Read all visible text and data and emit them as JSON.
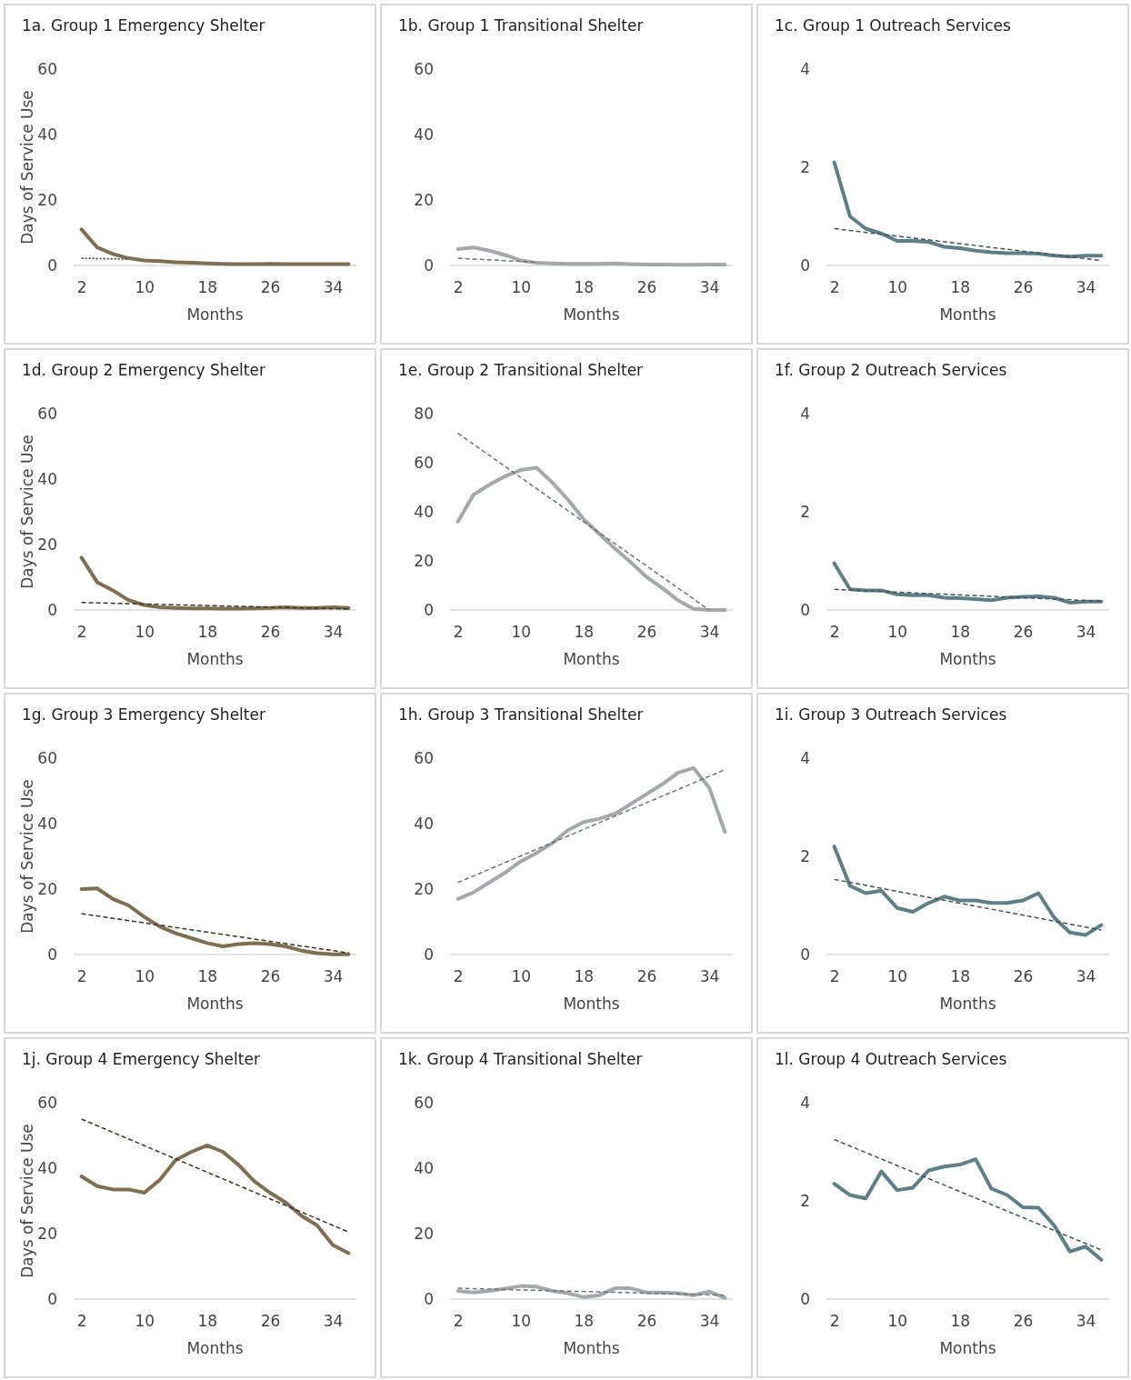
{
  "chart_data": [
    {
      "type": "line",
      "title": "1a. Group 1 Emergency Shelter",
      "xlabel": "Months",
      "ylabel": "Days of Service Use",
      "x": [
        2,
        4,
        6,
        8,
        10,
        12,
        14,
        16,
        18,
        20,
        22,
        24,
        26,
        28,
        30,
        32,
        34,
        36
      ],
      "xlim": [
        1,
        37
      ],
      "xticks": [
        2,
        10,
        18,
        26,
        34
      ],
      "ylim": [
        0,
        60
      ],
      "yticks": [
        0,
        20,
        40,
        60
      ],
      "series": [
        {
          "color": "#7f6f52",
          "values": [
            11,
            5.5,
            3.5,
            2.2,
            1.5,
            1.3,
            1,
            0.8,
            0.6,
            0.5,
            0.4,
            0.4,
            0.5,
            0.4,
            0.4,
            0.4,
            0.4,
            0.4
          ]
        },
        {
          "type": "line",
          "line_style": "dotted",
          "color": "#3a3328",
          "x": [
            2,
            8
          ],
          "values": [
            2.2,
            1.9
          ]
        }
      ]
    },
    {
      "type": "line",
      "title": "1b. Group 1 Transitional Shelter",
      "xlabel": "Months",
      "x": [
        2,
        4,
        6,
        8,
        10,
        12,
        14,
        16,
        18,
        20,
        22,
        24,
        26,
        28,
        30,
        32,
        34,
        36
      ],
      "xlim": [
        1,
        37
      ],
      "xticks": [
        2,
        10,
        18,
        26,
        34
      ],
      "ylim": [
        0,
        60
      ],
      "yticks": [
        0,
        20,
        40,
        60
      ],
      "series": [
        {
          "color": "#a5a8aa",
          "values": [
            5,
            5.5,
            4.5,
            3.2,
            1.5,
            0.8,
            0.6,
            0.5,
            0.5,
            0.5,
            0.6,
            0.4,
            0.3,
            0.3,
            0.2,
            0.2,
            0.3,
            0.3
          ]
        },
        {
          "type": "line",
          "line_style": "dashed",
          "color": "#6b747a",
          "x": [
            2,
            12
          ],
          "values": [
            2.2,
            1
          ]
        }
      ]
    },
    {
      "type": "line",
      "title": "1c. Group 1 Outreach Services",
      "xlabel": "Months",
      "x": [
        2,
        4,
        6,
        8,
        10,
        12,
        14,
        16,
        18,
        20,
        22,
        24,
        26,
        28,
        30,
        32,
        34,
        36
      ],
      "xlim": [
        1,
        37
      ],
      "xticks": [
        2,
        10,
        18,
        26,
        34
      ],
      "ylim": [
        0,
        4
      ],
      "yticks": [
        0,
        2,
        4
      ],
      "series": [
        {
          "color": "#5f7f88",
          "values": [
            2.1,
            1,
            0.75,
            0.65,
            0.5,
            0.5,
            0.48,
            0.38,
            0.35,
            0.3,
            0.27,
            0.25,
            0.25,
            0.24,
            0.2,
            0.18,
            0.2,
            0.2
          ]
        },
        {
          "type": "line",
          "line_style": "dashed",
          "color": "#44545a",
          "x": [
            2,
            36
          ],
          "values": [
            0.75,
            0.1
          ]
        }
      ]
    },
    {
      "type": "line",
      "title": "1d. Group 2 Emergency Shelter",
      "xlabel": "Months",
      "ylabel": "Days of Service Use",
      "x": [
        2,
        4,
        6,
        8,
        10,
        12,
        14,
        16,
        18,
        20,
        22,
        24,
        26,
        28,
        30,
        32,
        34,
        36
      ],
      "xlim": [
        1,
        37
      ],
      "xticks": [
        2,
        10,
        18,
        26,
        34
      ],
      "ylim": [
        0,
        60
      ],
      "yticks": [
        0,
        20,
        40,
        60
      ],
      "series": [
        {
          "color": "#7f6f52",
          "values": [
            16,
            8.5,
            6,
            3,
            1.5,
            0.8,
            0.6,
            0.5,
            0.5,
            0.4,
            0.4,
            0.5,
            0.6,
            0.8,
            0.6,
            0.6,
            0.8,
            0.6
          ]
        },
        {
          "type": "line",
          "line_style": "dashed",
          "color": "#3a3328",
          "x": [
            2,
            36
          ],
          "values": [
            2.3,
            0.3
          ]
        }
      ]
    },
    {
      "type": "line",
      "title": "1e. Group 2 Transitional Shelter",
      "xlabel": "Months",
      "x": [
        2,
        4,
        6,
        8,
        10,
        12,
        14,
        16,
        18,
        20,
        22,
        24,
        26,
        28,
        30,
        32,
        34,
        36
      ],
      "xlim": [
        1,
        37
      ],
      "xticks": [
        2,
        10,
        18,
        26,
        34
      ],
      "ylim": [
        0,
        80
      ],
      "yticks": [
        0,
        20,
        40,
        60,
        80
      ],
      "series": [
        {
          "color": "#a5a8aa",
          "values": [
            36,
            47,
            51,
            54.5,
            57,
            58,
            52,
            45,
            37,
            31,
            25,
            19.5,
            13.5,
            9,
            4,
            0.5,
            0,
            0
          ]
        },
        {
          "type": "line",
          "line_style": "dashed",
          "color": "#6b747a",
          "x": [
            2,
            34
          ],
          "values": [
            72,
            0
          ]
        }
      ]
    },
    {
      "type": "line",
      "title": "1f. Group 2 Outreach Services",
      "xlabel": "Months",
      "x": [
        2,
        4,
        6,
        8,
        10,
        12,
        14,
        16,
        18,
        20,
        22,
        24,
        26,
        28,
        30,
        32,
        34,
        36
      ],
      "xlim": [
        1,
        37
      ],
      "xticks": [
        2,
        10,
        18,
        26,
        34
      ],
      "ylim": [
        0,
        4
      ],
      "yticks": [
        0,
        2,
        4
      ],
      "series": [
        {
          "color": "#5f7f88",
          "values": [
            0.95,
            0.42,
            0.4,
            0.4,
            0.32,
            0.3,
            0.3,
            0.25,
            0.24,
            0.22,
            0.2,
            0.25,
            0.27,
            0.28,
            0.25,
            0.15,
            0.17,
            0.17
          ]
        },
        {
          "type": "line",
          "line_style": "dashed",
          "color": "#44545a",
          "x": [
            2,
            36
          ],
          "values": [
            0.42,
            0.18
          ]
        }
      ]
    },
    {
      "type": "line",
      "title": "1g. Group 3 Emergency Shelter",
      "xlabel": "Months",
      "ylabel": "Days of Service Use",
      "x": [
        2,
        4,
        6,
        8,
        10,
        12,
        14,
        16,
        18,
        20,
        22,
        24,
        26,
        28,
        30,
        32,
        34,
        36
      ],
      "xlim": [
        1,
        37
      ],
      "xticks": [
        2,
        10,
        18,
        26,
        34
      ],
      "ylim": [
        0,
        60
      ],
      "yticks": [
        0,
        20,
        40,
        60
      ],
      "series": [
        {
          "color": "#7f6f52",
          "values": [
            20,
            20.2,
            17,
            15,
            11.5,
            8.5,
            6.5,
            5,
            3.5,
            2.5,
            3.2,
            3.5,
            3.2,
            2.5,
            1.2,
            0.4,
            0.1,
            0.1
          ]
        },
        {
          "type": "line",
          "line_style": "dashed",
          "color": "#3a3328",
          "x": [
            2,
            36
          ],
          "values": [
            12.5,
            0.5
          ]
        }
      ]
    },
    {
      "type": "line",
      "title": "1h. Group 3 Transitional Shelter",
      "xlabel": "Months",
      "x": [
        2,
        4,
        6,
        8,
        10,
        12,
        14,
        16,
        18,
        20,
        22,
        24,
        26,
        28,
        30,
        32,
        34,
        36
      ],
      "xlim": [
        1,
        37
      ],
      "xticks": [
        2,
        10,
        18,
        26,
        34
      ],
      "ylim": [
        0,
        60
      ],
      "yticks": [
        0,
        20,
        40,
        60
      ],
      "series": [
        {
          "color": "#a5a8aa",
          "values": [
            17,
            19,
            22,
            25,
            28.5,
            31,
            34,
            38,
            40.5,
            41.5,
            43,
            46,
            49,
            52,
            55.5,
            57,
            51,
            37.5
          ]
        },
        {
          "type": "line",
          "line_style": "dashed",
          "color": "#6b747a",
          "x": [
            2,
            36
          ],
          "values": [
            22,
            56.5
          ]
        }
      ]
    },
    {
      "type": "line",
      "title": "1i. Group 3 Outreach Services",
      "xlabel": "Months",
      "x": [
        2,
        4,
        6,
        8,
        10,
        12,
        14,
        16,
        18,
        20,
        22,
        24,
        26,
        28,
        30,
        32,
        34,
        36
      ],
      "xlim": [
        1,
        37
      ],
      "xticks": [
        2,
        10,
        18,
        26,
        34
      ],
      "ylim": [
        0,
        4
      ],
      "yticks": [
        0,
        2,
        4
      ],
      "series": [
        {
          "color": "#5f7f88",
          "values": [
            2.2,
            1.4,
            1.25,
            1.3,
            0.95,
            0.87,
            1.05,
            1.18,
            1.1,
            1.1,
            1.05,
            1.05,
            1.1,
            1.25,
            0.75,
            0.45,
            0.4,
            0.6
          ]
        },
        {
          "type": "line",
          "line_style": "dashed",
          "color": "#44545a",
          "x": [
            2,
            36
          ],
          "values": [
            1.53,
            0.5
          ]
        }
      ]
    },
    {
      "type": "line",
      "title": "1j. Group 4 Emergency Shelter",
      "xlabel": "Months",
      "ylabel": "Days of Service Use",
      "x": [
        2,
        4,
        6,
        8,
        10,
        12,
        14,
        16,
        18,
        20,
        22,
        24,
        26,
        28,
        30,
        32,
        34,
        36
      ],
      "xlim": [
        1,
        37
      ],
      "xticks": [
        2,
        10,
        18,
        26,
        34
      ],
      "ylim": [
        0,
        60
      ],
      "yticks": [
        0,
        20,
        40,
        60
      ],
      "series": [
        {
          "color": "#7f6f52",
          "values": [
            37.5,
            34.5,
            33.5,
            33.5,
            32.5,
            36.5,
            42.5,
            45,
            47,
            45,
            41,
            36,
            32.5,
            29.5,
            25.5,
            22.5,
            16.5,
            14
          ]
        },
        {
          "type": "line",
          "line_style": "dashed",
          "color": "#3a3328",
          "x": [
            2,
            36
          ],
          "values": [
            55,
            20.5
          ]
        }
      ]
    },
    {
      "type": "line",
      "title": "1k. Group 4 Transitional Shelter",
      "xlabel": "Months",
      "x": [
        2,
        4,
        6,
        8,
        10,
        12,
        14,
        16,
        18,
        20,
        22,
        24,
        26,
        28,
        30,
        32,
        34,
        36
      ],
      "xlim": [
        1,
        37
      ],
      "xticks": [
        2,
        10,
        18,
        26,
        34
      ],
      "ylim": [
        0,
        60
      ],
      "yticks": [
        0,
        20,
        40,
        60
      ],
      "series": [
        {
          "color": "#a5a8aa",
          "values": [
            2.5,
            2,
            2.5,
            3.2,
            4,
            3.8,
            2.5,
            1.8,
            0.6,
            1.2,
            3.3,
            3.3,
            2,
            2,
            1.8,
            1.2,
            2.3,
            0.4
          ]
        },
        {
          "type": "line",
          "line_style": "dashed",
          "color": "#6b747a",
          "x": [
            2,
            36
          ],
          "values": [
            3.3,
            1.2
          ]
        }
      ]
    },
    {
      "type": "line",
      "title": "1l. Group 4 Outreach Services",
      "xlabel": "Months",
      "x": [
        2,
        4,
        6,
        8,
        10,
        12,
        14,
        16,
        18,
        20,
        22,
        24,
        26,
        28,
        30,
        32,
        34,
        36
      ],
      "xlim": [
        1,
        37
      ],
      "xticks": [
        2,
        10,
        18,
        26,
        34
      ],
      "ylim": [
        0,
        4
      ],
      "yticks": [
        0,
        2,
        4
      ],
      "series": [
        {
          "color": "#5f7f88",
          "values": [
            2.35,
            2.12,
            2.05,
            2.6,
            2.22,
            2.27,
            2.62,
            2.7,
            2.74,
            2.85,
            2.25,
            2.12,
            1.87,
            1.86,
            1.5,
            0.97,
            1.07,
            0.8
          ]
        },
        {
          "type": "line",
          "line_style": "dashed",
          "color": "#44545a",
          "x": [
            2,
            36
          ],
          "values": [
            3.25,
            1
          ]
        }
      ]
    }
  ]
}
